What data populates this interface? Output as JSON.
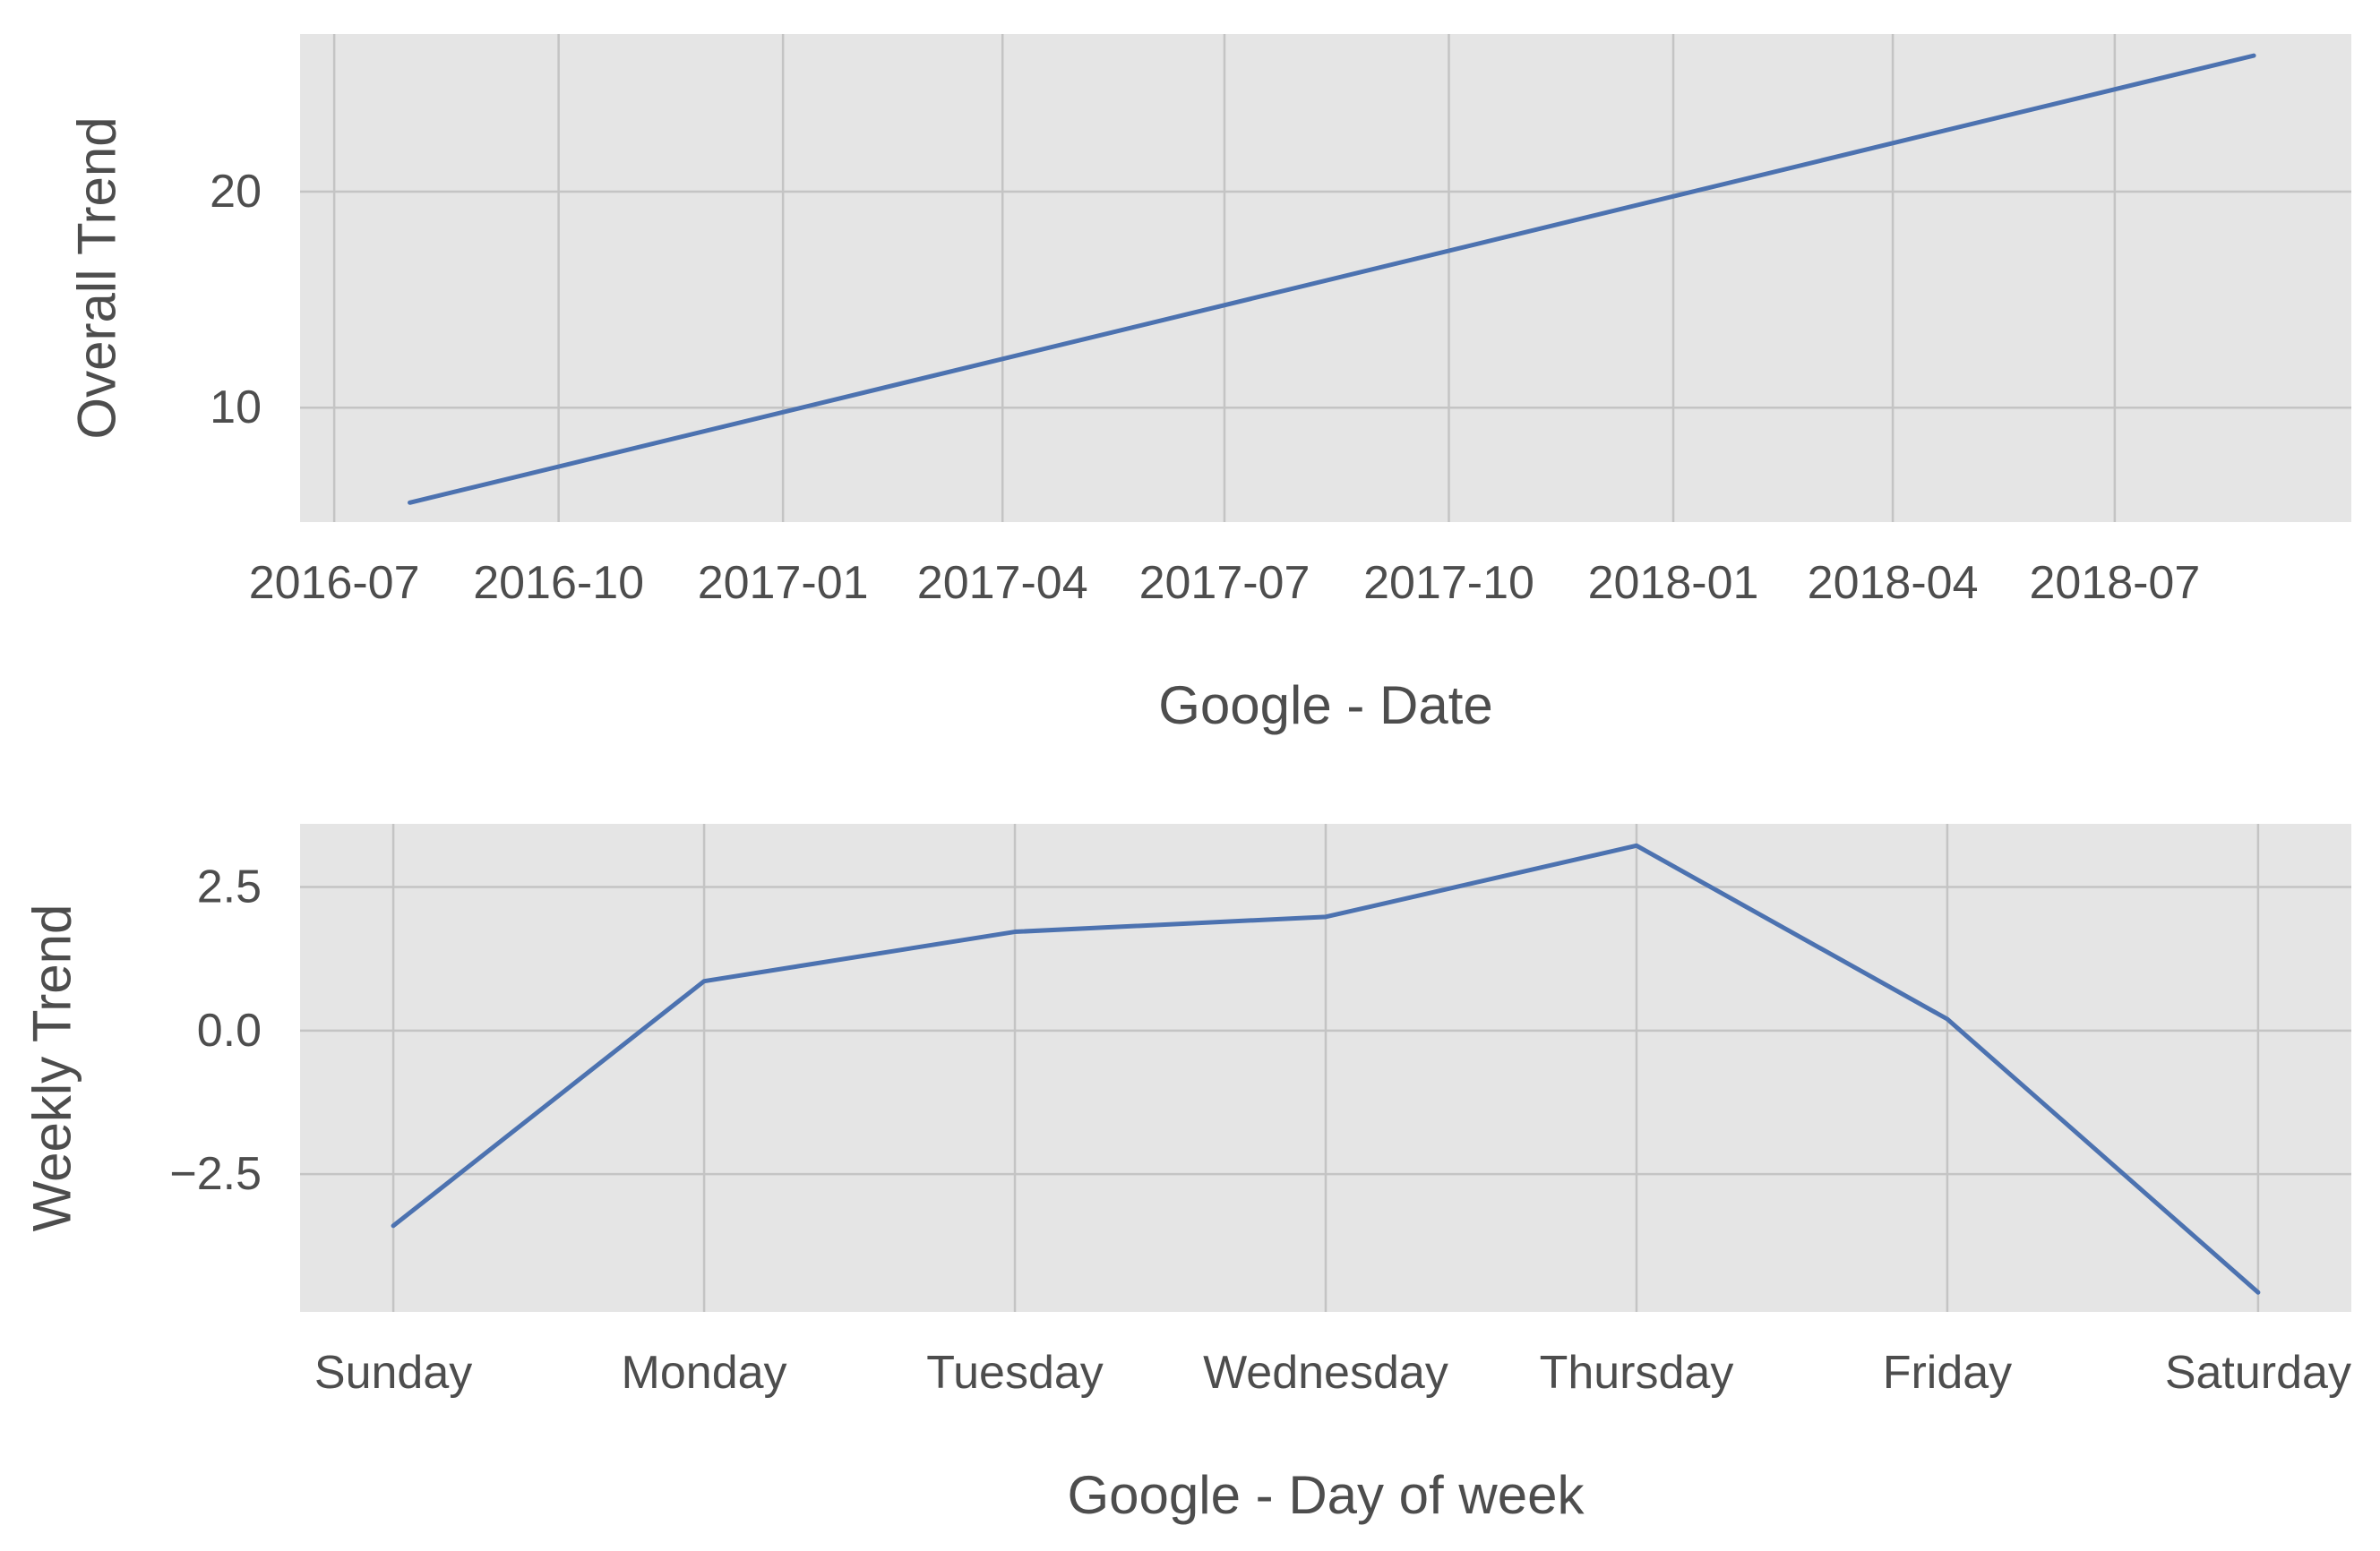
{
  "chart_data": [
    {
      "type": "line",
      "title": "",
      "xlabel": "Google - Date",
      "ylabel": "Overall Trend",
      "x_type": "date",
      "x": [
        "2016-08-01",
        "2018-08-27"
      ],
      "series": [
        {
          "values": [
            5.6,
            26.3
          ]
        }
      ],
      "xlim": [
        "2016-06-17",
        "2018-10-06"
      ],
      "ylim": [
        4.7,
        27.3
      ],
      "xticks": [
        "2016-07-01",
        "2016-10-01",
        "2017-01-01",
        "2017-04-01",
        "2017-07-01",
        "2017-10-01",
        "2018-01-01",
        "2018-04-01",
        "2018-07-01"
      ],
      "xtick_labels": [
        "2016-07",
        "2016-10",
        "2017-01",
        "2017-04",
        "2017-07",
        "2017-10",
        "2018-01",
        "2018-04",
        "2018-07"
      ],
      "yticks": [
        10,
        20
      ],
      "ytick_labels": [
        "10",
        "20"
      ],
      "grid": true,
      "color": "#4c72b0"
    },
    {
      "type": "line",
      "title": "",
      "xlabel": "Google - Day of week",
      "ylabel": "Weekly Trend",
      "categories": [
        "Sunday",
        "Monday",
        "Tuesday",
        "Wednesday",
        "Thursday",
        "Friday",
        "Saturday"
      ],
      "series": [
        {
          "values": [
            -3.4,
            0.86,
            1.72,
            1.98,
            3.22,
            0.2,
            -4.56
          ]
        }
      ],
      "ylim": [
        -4.9,
        3.6
      ],
      "yticks": [
        -2.5,
        0.0,
        2.5
      ],
      "ytick_labels": [
        "−2.5",
        "0.0",
        "2.5"
      ],
      "grid": true,
      "color": "#4c72b0"
    }
  ]
}
